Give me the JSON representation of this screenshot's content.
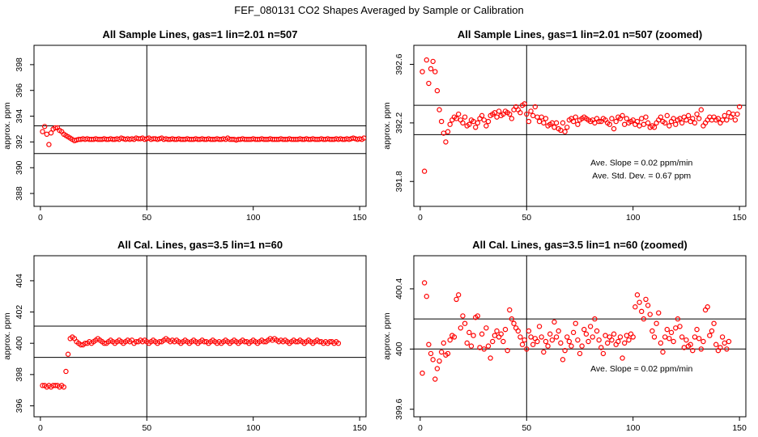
{
  "page_title": "FEF_080131  CO2 Shapes Averaged by Sample or Calibration",
  "colors": {
    "points": "#ff0000",
    "lines": "#000000",
    "background": "#ffffff"
  },
  "chart_data": [
    {
      "id": "p1",
      "type": "scatter",
      "title": "All Sample Lines, gas=1 lin=2.01 n=507",
      "xlabel": "",
      "ylabel": "approx. ppm",
      "xlim": [
        -3,
        153
      ],
      "ylim": [
        387,
        399.5
      ],
      "xticks": [
        0,
        50,
        100,
        150
      ],
      "yticks": [
        388,
        390,
        392,
        394,
        396,
        398
      ],
      "hlines": [
        393.25,
        391.1
      ],
      "vline": 50,
      "annotations": [],
      "series": [
        {
          "y": [
            392.8,
            393.2,
            392.6,
            391.8,
            392.7,
            393.0,
            393.1,
            393.1,
            392.9,
            392.8,
            392.6,
            392.5,
            392.4,
            392.3,
            392.2,
            392.1,
            392.15,
            392.2,
            392.2,
            392.25,
            392.2,
            392.25,
            392.2,
            392.2,
            392.2,
            392.25,
            392.2,
            392.2,
            392.2,
            392.25,
            392.2,
            392.2,
            392.25,
            392.2,
            392.2,
            392.25,
            392.2,
            392.3,
            392.25,
            392.2,
            392.25,
            392.2,
            392.25,
            392.2,
            392.3,
            392.25,
            392.25,
            392.3,
            392.2,
            392.25,
            392.3,
            392.2,
            392.25,
            392.25,
            392.2,
            392.25,
            392.3,
            392.2,
            392.25,
            392.2,
            392.2,
            392.25,
            392.2,
            392.2,
            392.25,
            392.2,
            392.2,
            392.2,
            392.25,
            392.2,
            392.2,
            392.2,
            392.25,
            392.2,
            392.2,
            392.25,
            392.2,
            392.2,
            392.25,
            392.2,
            392.2,
            392.2,
            392.25,
            392.2,
            392.2,
            392.25,
            392.2,
            392.3,
            392.2,
            392.2,
            392.2,
            392.15,
            392.2,
            392.2,
            392.25,
            392.2,
            392.2,
            392.2,
            392.2,
            392.25,
            392.2,
            392.2,
            392.2,
            392.25,
            392.2,
            392.2,
            392.2,
            392.25,
            392.2,
            392.2,
            392.2,
            392.2,
            392.25,
            392.2,
            392.2,
            392.2,
            392.25,
            392.2,
            392.2,
            392.2,
            392.2,
            392.25,
            392.2,
            392.2,
            392.25,
            392.2,
            392.2,
            392.25,
            392.2,
            392.2,
            392.2,
            392.25,
            392.2,
            392.2,
            392.25,
            392.2,
            392.2,
            392.2,
            392.25,
            392.2,
            392.25,
            392.2,
            392.2,
            392.25,
            392.2,
            392.25,
            392.3,
            392.25,
            392.2,
            392.25,
            392.2,
            392.3
          ]
        }
      ]
    },
    {
      "id": "p2",
      "type": "scatter",
      "title": "All Sample Lines, gas=1 lin=2.01 n=507 (zoomed)",
      "xlabel": "",
      "ylabel": "approx. ppm",
      "xlim": [
        -3,
        153
      ],
      "ylim": [
        391.63,
        392.73
      ],
      "xticks": [
        0,
        50,
        100,
        150
      ],
      "yticks": [
        391.8,
        392.2,
        392.6
      ],
      "hlines": [
        392.32,
        392.12
      ],
      "vline": 50,
      "annotations": [
        {
          "text": "Ave. Slope =  0.02  ppm/min",
          "x": 104,
          "y": 391.91
        },
        {
          "text": "Ave. Std. Dev. =  0.67  ppm",
          "x": 104,
          "y": 391.82
        }
      ],
      "series": [
        {
          "y": [
            392.55,
            391.87,
            392.63,
            392.47,
            392.57,
            392.62,
            392.55,
            392.42,
            392.29,
            392.21,
            392.13,
            392.07,
            392.14,
            392.19,
            392.22,
            392.24,
            392.23,
            392.26,
            392.22,
            392.2,
            392.24,
            392.18,
            392.19,
            392.22,
            392.21,
            392.17,
            392.2,
            392.23,
            392.25,
            392.22,
            392.18,
            392.21,
            392.25,
            392.26,
            392.27,
            392.24,
            392.28,
            392.25,
            392.26,
            392.28,
            392.27,
            392.26,
            392.23,
            392.29,
            392.31,
            392.29,
            392.27,
            392.32,
            392.33,
            392.26,
            392.21,
            392.28,
            392.25,
            392.31,
            392.24,
            392.21,
            392.24,
            392.2,
            392.23,
            392.18,
            392.19,
            392.2,
            392.17,
            392.2,
            392.16,
            392.15,
            392.2,
            392.14,
            392.17,
            392.22,
            392.23,
            392.21,
            392.24,
            392.19,
            392.22,
            392.23,
            392.24,
            392.23,
            392.22,
            392.21,
            392.22,
            392.2,
            392.23,
            392.21,
            392.21,
            392.23,
            392.22,
            392.2,
            392.19,
            392.23,
            392.16,
            392.21,
            392.24,
            392.23,
            392.25,
            392.19,
            392.23,
            392.2,
            392.21,
            392.22,
            392.19,
            392.21,
            392.18,
            392.23,
            392.19,
            392.24,
            392.2,
            392.17,
            392.18,
            392.17,
            392.2,
            392.22,
            392.24,
            392.21,
            392.2,
            392.25,
            392.18,
            392.21,
            392.23,
            392.19,
            392.22,
            392.23,
            392.2,
            392.24,
            392.22,
            392.25,
            392.21,
            392.23,
            392.2,
            392.26,
            392.23,
            392.29,
            392.18,
            392.2,
            392.22,
            392.24,
            392.22,
            392.24,
            392.22,
            392.23,
            392.2,
            392.22,
            392.25,
            392.22,
            392.27,
            392.24,
            392.26,
            392.22,
            392.26,
            392.31
          ]
        }
      ]
    },
    {
      "id": "p3",
      "type": "scatter",
      "title": "All Cal. Lines, gas=3.5 lin=1 n=60",
      "xlabel": "",
      "ylabel": "approx. ppm",
      "xlim": [
        -3,
        153
      ],
      "ylim": [
        395.3,
        405.6
      ],
      "xticks": [
        0,
        50,
        100,
        150
      ],
      "yticks": [
        396,
        398,
        400,
        402,
        404
      ],
      "hlines": [
        401.1,
        399.1
      ],
      "vline": 50,
      "annotations": [],
      "series": [
        {
          "y": [
            397.3,
            397.3,
            397.2,
            397.3,
            397.2,
            397.3,
            397.3,
            397.3,
            397.2,
            397.3,
            397.2,
            398.2,
            399.3,
            400.3,
            400.4,
            400.3,
            400.1,
            400.0,
            399.9,
            399.9,
            400.0,
            400.0,
            400.1,
            400.0,
            400.1,
            400.2,
            400.3,
            400.2,
            400.1,
            400.0,
            400.0,
            400.1,
            400.2,
            400.1,
            400.0,
            400.1,
            400.2,
            400.1,
            400.0,
            400.1,
            400.2,
            400.1,
            400.2,
            400.0,
            400.1,
            400.1,
            400.2,
            400.1,
            400.2,
            400.1,
            400.0,
            400.1,
            400.2,
            400.1,
            400.0,
            400.1,
            400.1,
            400.2,
            400.3,
            400.2,
            400.1,
            400.2,
            400.1,
            400.2,
            400.1,
            400.0,
            400.1,
            400.2,
            400.1,
            400.0,
            400.1,
            400.2,
            400.1,
            400.0,
            400.1,
            400.2,
            400.1,
            400.1,
            400.0,
            400.1,
            400.2,
            400.1,
            400.0,
            400.1,
            400.0,
            400.1,
            400.2,
            400.1,
            400.0,
            400.1,
            400.2,
            400.1,
            400.0,
            400.1,
            400.2,
            400.1,
            400.1,
            400.0,
            400.1,
            400.2,
            400.1,
            400.0,
            400.1,
            400.2,
            400.1,
            400.1,
            400.2,
            400.3,
            400.2,
            400.3,
            400.2,
            400.1,
            400.2,
            400.1,
            400.2,
            400.1,
            400.0,
            400.1,
            400.2,
            400.1,
            400.1,
            400.2,
            400.1,
            400.0,
            400.1,
            400.2,
            400.1,
            400.0,
            400.1,
            400.2,
            400.1,
            400.1,
            400.0,
            400.1,
            400.0,
            400.1,
            400.1,
            400.0,
            400.1,
            400.0
          ]
        }
      ]
    },
    {
      "id": "p4",
      "type": "scatter",
      "title": "All Cal. Lines, gas=3.5 lin=1 n=60 (zoomed)",
      "xlabel": "",
      "ylabel": "approx. ppm",
      "xlim": [
        -3,
        153
      ],
      "ylim": [
        399.55,
        400.62
      ],
      "xticks": [
        0,
        50,
        100,
        150
      ],
      "yticks": [
        399.6,
        400.0,
        400.4
      ],
      "hlines": [
        400.2,
        400.0
      ],
      "vline": 50,
      "annotations": [
        {
          "text": "Ave. Slope =  0.02  ppm/min",
          "x": 104,
          "y": 399.85
        }
      ],
      "series": [
        {
          "y": [
            399.84,
            400.44,
            400.35,
            400.03,
            399.97,
            399.93,
            399.8,
            399.87,
            399.92,
            399.98,
            400.04,
            399.96,
            399.97,
            400.06,
            400.09,
            400.08,
            400.33,
            400.36,
            400.14,
            400.22,
            400.17,
            400.04,
            400.11,
            400.02,
            400.09,
            400.21,
            400.22,
            400.01,
            400.1,
            400.0,
            400.14,
            400.02,
            399.94,
            400.05,
            400.09,
            400.12,
            400.08,
            400.1,
            400.05,
            400.13,
            399.99,
            400.26,
            400.2,
            400.17,
            400.14,
            400.12,
            400.08,
            400.03,
            400.06,
            400.0,
            400.12,
            400.08,
            400.03,
            400.07,
            400.05,
            400.15,
            400.08,
            399.98,
            400.05,
            400.02,
            400.1,
            400.06,
            400.18,
            400.08,
            400.12,
            400.04,
            399.93,
            399.99,
            400.08,
            400.05,
            400.02,
            400.11,
            400.17,
            400.06,
            399.97,
            400.02,
            400.13,
            400.1,
            400.05,
            400.15,
            400.08,
            400.2,
            400.12,
            400.06,
            400.01,
            399.97,
            400.09,
            400.04,
            400.08,
            400.06,
            400.1,
            400.03,
            400.05,
            400.08,
            399.94,
            400.04,
            400.09,
            400.06,
            400.1,
            400.08,
            400.28,
            400.36,
            400.31,
            400.25,
            400.2,
            400.33,
            400.29,
            400.23,
            400.12,
            400.08,
            400.17,
            400.24,
            400.04,
            399.98,
            400.08,
            400.13,
            400.07,
            400.11,
            400.05,
            400.14,
            400.2,
            400.15,
            400.08,
            400.01,
            400.06,
            400.02,
            400.03,
            399.99,
            400.08,
            400.13,
            400.07,
            400.0,
            400.05,
            400.26,
            400.28,
            400.09,
            400.12,
            400.17,
            400.03,
            399.99,
            400.01,
            400.08,
            400.04,
            400.0,
            400.05
          ]
        }
      ]
    }
  ]
}
